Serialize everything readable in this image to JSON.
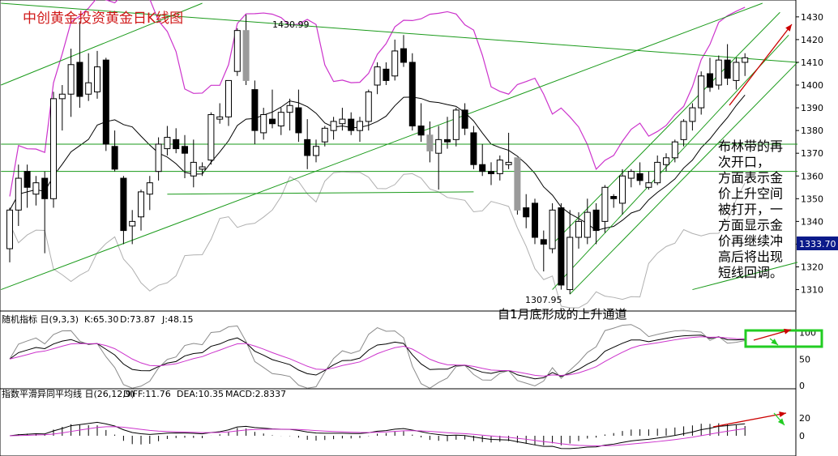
{
  "colors": {
    "up": "#000000",
    "down": "#000000",
    "grey_candle": "#9a9a9a",
    "bollinger_band": "#b0b0b0",
    "bollinger_upper": "#cc33cc",
    "ma": "#000000",
    "channel": "#1a9a1a",
    "arrow": "#cc0000",
    "k": "#000000",
    "d": "#cc33cc",
    "j": "#8a8a8a",
    "diff": "#000000",
    "dea": "#cc33cc",
    "price_tag_bg": "#0b1a8a",
    "highlight_box": "#22cc22"
  },
  "chart_data": [
    {
      "type": "candlestick",
      "title": "中创黄金投资黄金日K线图",
      "ylim": [
        1302,
        1436
      ],
      "yticks": [
        1310,
        1320,
        1330,
        1340,
        1350,
        1360,
        1370,
        1380,
        1390,
        1400,
        1410,
        1420,
        1430
      ],
      "last_price_label": "1333.70",
      "annotations": {
        "high_label": "1430.99",
        "low_label": "1307.95",
        "channel_note": "自1月底形成的上升通道",
        "side_note": [
          "布林带的再",
          "次开口，",
          "方面表示金",
          "价上升空间",
          "被打开，一",
          "方面显示金",
          "价再继续冲",
          "高后将出现",
          "短线回调。"
        ]
      },
      "candles": [
        {
          "o": 1328,
          "h": 1346,
          "l": 1322,
          "c": 1345
        },
        {
          "o": 1345,
          "h": 1365,
          "l": 1338,
          "c": 1359
        },
        {
          "o": 1362,
          "h": 1365,
          "l": 1346,
          "c": 1355
        },
        {
          "o": 1352,
          "h": 1360,
          "l": 1347,
          "c": 1357
        },
        {
          "o": 1359,
          "h": 1362,
          "l": 1326,
          "c": 1350
        },
        {
          "o": 1350,
          "h": 1397,
          "l": 1346,
          "c": 1394
        },
        {
          "o": 1394,
          "h": 1400,
          "l": 1380,
          "c": 1396
        },
        {
          "o": 1396,
          "h": 1416,
          "l": 1386,
          "c": 1409
        },
        {
          "o": 1410,
          "h": 1428,
          "l": 1390,
          "c": 1395
        },
        {
          "o": 1396,
          "h": 1414,
          "l": 1393,
          "c": 1401
        },
        {
          "o": 1397,
          "h": 1415,
          "l": 1394,
          "c": 1408
        },
        {
          "o": 1411,
          "h": 1412,
          "l": 1371,
          "c": 1374
        },
        {
          "o": 1373,
          "h": 1380,
          "l": 1362,
          "c": 1363
        },
        {
          "o": 1359,
          "h": 1360,
          "l": 1330,
          "c": 1336
        },
        {
          "o": 1338,
          "h": 1345,
          "l": 1330,
          "c": 1340
        },
        {
          "o": 1342,
          "h": 1354,
          "l": 1336,
          "c": 1353
        },
        {
          "o": 1352,
          "h": 1360,
          "l": 1345,
          "c": 1357
        },
        {
          "o": 1362,
          "h": 1377,
          "l": 1358,
          "c": 1374
        },
        {
          "o": 1372,
          "h": 1382,
          "l": 1369,
          "c": 1377
        },
        {
          "o": 1376,
          "h": 1381,
          "l": 1370,
          "c": 1372
        },
        {
          "o": 1373,
          "h": 1378,
          "l": 1359,
          "c": 1370
        },
        {
          "o": 1360,
          "h": 1376,
          "l": 1355,
          "c": 1366
        },
        {
          "o": 1363,
          "h": 1366,
          "l": 1360,
          "c": 1364
        },
        {
          "o": 1367,
          "h": 1388,
          "l": 1365,
          "c": 1387
        },
        {
          "o": 1385,
          "h": 1392,
          "l": 1383,
          "c": 1386
        },
        {
          "o": 1386,
          "h": 1402,
          "l": 1382,
          "c": 1402
        },
        {
          "o": 1406,
          "h": 1425,
          "l": 1404,
          "c": 1424
        },
        {
          "o": 1424,
          "h": 1431,
          "l": 1400,
          "c": 1402,
          "grey": true
        },
        {
          "o": 1398,
          "h": 1402,
          "l": 1374,
          "c": 1380
        },
        {
          "o": 1379,
          "h": 1390,
          "l": 1376,
          "c": 1387
        },
        {
          "o": 1385,
          "h": 1398,
          "l": 1381,
          "c": 1383
        },
        {
          "o": 1382,
          "h": 1390,
          "l": 1378,
          "c": 1388
        },
        {
          "o": 1388,
          "h": 1394,
          "l": 1380,
          "c": 1391
        },
        {
          "o": 1390,
          "h": 1398,
          "l": 1375,
          "c": 1379
        },
        {
          "o": 1376,
          "h": 1385,
          "l": 1363,
          "c": 1369
        },
        {
          "o": 1369,
          "h": 1376,
          "l": 1366,
          "c": 1373
        },
        {
          "o": 1375,
          "h": 1382,
          "l": 1373,
          "c": 1381
        },
        {
          "o": 1380,
          "h": 1386,
          "l": 1376,
          "c": 1384
        },
        {
          "o": 1383,
          "h": 1390,
          "l": 1380,
          "c": 1385
        },
        {
          "o": 1385,
          "h": 1388,
          "l": 1378,
          "c": 1380
        },
        {
          "o": 1380,
          "h": 1386,
          "l": 1375,
          "c": 1384
        },
        {
          "o": 1384,
          "h": 1398,
          "l": 1380,
          "c": 1397
        },
        {
          "o": 1400,
          "h": 1410,
          "l": 1396,
          "c": 1408
        },
        {
          "o": 1407,
          "h": 1410,
          "l": 1400,
          "c": 1402
        },
        {
          "o": 1404,
          "h": 1420,
          "l": 1402,
          "c": 1415
        },
        {
          "o": 1416,
          "h": 1422,
          "l": 1408,
          "c": 1410
        },
        {
          "o": 1410,
          "h": 1414,
          "l": 1380,
          "c": 1382
        },
        {
          "o": 1382,
          "h": 1392,
          "l": 1375,
          "c": 1378
        },
        {
          "o": 1378,
          "h": 1384,
          "l": 1366,
          "c": 1371,
          "grey": true
        },
        {
          "o": 1370,
          "h": 1382,
          "l": 1354,
          "c": 1376
        },
        {
          "o": 1376,
          "h": 1386,
          "l": 1372,
          "c": 1375
        },
        {
          "o": 1376,
          "h": 1390,
          "l": 1373,
          "c": 1389
        },
        {
          "o": 1389,
          "h": 1392,
          "l": 1378,
          "c": 1381
        },
        {
          "o": 1379,
          "h": 1382,
          "l": 1363,
          "c": 1365
        },
        {
          "o": 1365,
          "h": 1374,
          "l": 1360,
          "c": 1362
        },
        {
          "o": 1362,
          "h": 1366,
          "l": 1356,
          "c": 1361
        },
        {
          "o": 1361,
          "h": 1369,
          "l": 1358,
          "c": 1367
        },
        {
          "o": 1365,
          "h": 1379,
          "l": 1363,
          "c": 1366
        },
        {
          "o": 1368,
          "h": 1368,
          "l": 1343,
          "c": 1345,
          "grey": true
        },
        {
          "o": 1346,
          "h": 1352,
          "l": 1337,
          "c": 1342
        },
        {
          "o": 1348,
          "h": 1350,
          "l": 1330,
          "c": 1333
        },
        {
          "o": 1332,
          "h": 1336,
          "l": 1318,
          "c": 1330
        },
        {
          "o": 1328,
          "h": 1348,
          "l": 1326,
          "c": 1345
        },
        {
          "o": 1346,
          "h": 1348,
          "l": 1310,
          "c": 1312
        },
        {
          "o": 1310,
          "h": 1345,
          "l": 1308,
          "c": 1333
        },
        {
          "o": 1333,
          "h": 1344,
          "l": 1328,
          "c": 1340
        },
        {
          "o": 1333,
          "h": 1350,
          "l": 1330,
          "c": 1344
        },
        {
          "o": 1345,
          "h": 1348,
          "l": 1330,
          "c": 1336
        },
        {
          "o": 1340,
          "h": 1356,
          "l": 1335,
          "c": 1355
        },
        {
          "o": 1351,
          "h": 1352,
          "l": 1346,
          "c": 1350
        },
        {
          "o": 1348,
          "h": 1363,
          "l": 1343,
          "c": 1360
        },
        {
          "o": 1359,
          "h": 1363,
          "l": 1355,
          "c": 1362
        },
        {
          "o": 1361,
          "h": 1366,
          "l": 1356,
          "c": 1358
        },
        {
          "o": 1355,
          "h": 1362,
          "l": 1354,
          "c": 1357
        },
        {
          "o": 1357,
          "h": 1369,
          "l": 1356,
          "c": 1366
        },
        {
          "o": 1365,
          "h": 1370,
          "l": 1362,
          "c": 1368
        },
        {
          "o": 1368,
          "h": 1376,
          "l": 1366,
          "c": 1375
        },
        {
          "o": 1376,
          "h": 1385,
          "l": 1373,
          "c": 1384
        },
        {
          "o": 1384,
          "h": 1392,
          "l": 1380,
          "c": 1390
        },
        {
          "o": 1390,
          "h": 1406,
          "l": 1387,
          "c": 1404
        },
        {
          "o": 1405,
          "h": 1412,
          "l": 1397,
          "c": 1399
        },
        {
          "o": 1400,
          "h": 1413,
          "l": 1398,
          "c": 1411
        },
        {
          "o": 1411,
          "h": 1418,
          "l": 1400,
          "c": 1403
        },
        {
          "o": 1402,
          "h": 1412,
          "l": 1398,
          "c": 1410
        },
        {
          "o": 1410,
          "h": 1414,
          "l": 1404,
          "c": 1412
        }
      ]
    },
    {
      "type": "line",
      "title": "随机指标 日(9,3,3)",
      "legend": [
        {
          "name": "K",
          "value_label": "K:65.30"
        },
        {
          "name": "D",
          "value_label": "D:73.87"
        },
        {
          "name": "J",
          "value_label": "J:48.15"
        }
      ],
      "ylim": [
        0,
        110
      ],
      "yticks": [
        0,
        50,
        100
      ]
    },
    {
      "type": "line",
      "title": "指数平滑异同平均线 日(26,12,9)",
      "legend": [
        {
          "name": "DIFF",
          "value_label": "DIFF:11.76"
        },
        {
          "name": "DEA",
          "value_label": "DEA:10.35"
        },
        {
          "name": "MACD",
          "value_label": "MACD:2.8337"
        }
      ],
      "yticks": [
        0,
        20
      ]
    }
  ]
}
